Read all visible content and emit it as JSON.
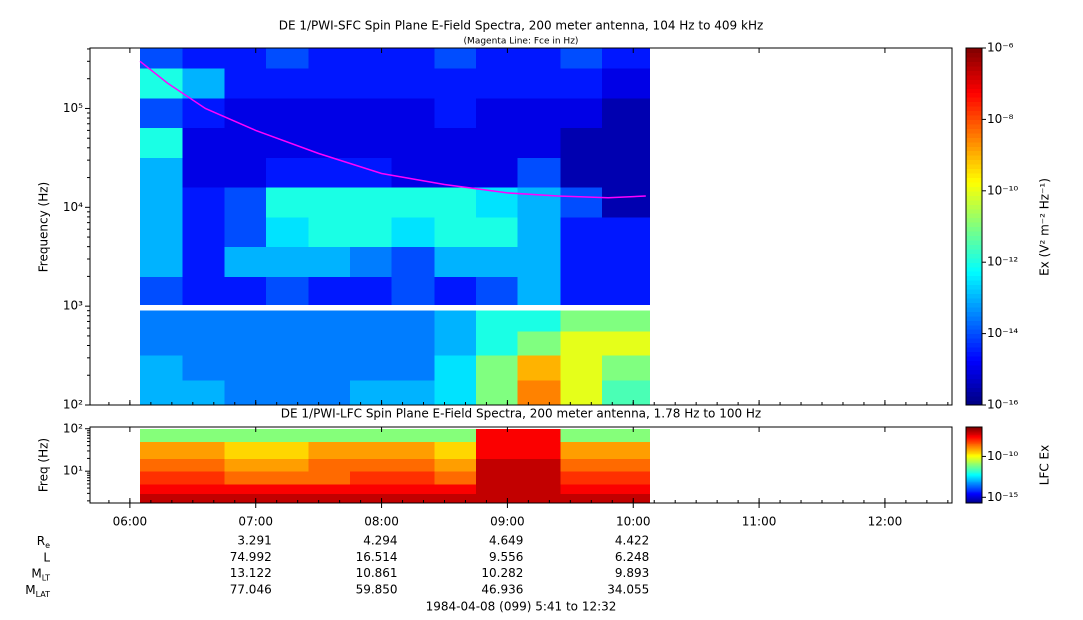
{
  "chart_data": [
    {
      "type": "heatmap",
      "title": "DE 1/PWI-SFC  Spin Plane E-Field Spectra, 200 meter antenna, 104 Hz to 409 kHz",
      "subtitle": "(Magenta Line: Fce in Hz)",
      "ylabel": "Frequency (Hz)",
      "colorbar_label": "Ex (V² m⁻² Hz⁻¹)",
      "colormap": "jet",
      "log_y": true,
      "xlim": [
        5.683,
        12.533
      ],
      "ylim": [
        100,
        409000
      ],
      "yticks": [
        {
          "value": 100,
          "label": "10²"
        },
        {
          "value": 1000,
          "label": "10³"
        },
        {
          "value": 10000,
          "label": "10⁴"
        },
        {
          "value": 100000,
          "label": "10⁵"
        }
      ],
      "clim": [
        1e-16,
        1e-06
      ],
      "cticks": [
        {
          "value": 1e-06,
          "label": "10⁻⁶"
        },
        {
          "value": 1e-08,
          "label": "10⁻⁸"
        },
        {
          "value": 1e-10,
          "label": "10⁻¹⁰"
        },
        {
          "value": 1e-12,
          "label": "10⁻¹²"
        },
        {
          "value": 1e-14,
          "label": "10⁻¹⁴"
        },
        {
          "value": 1e-16,
          "label": "10⁻¹⁶"
        }
      ],
      "x_edges": [
        6.08,
        6.42,
        6.75,
        7.08,
        7.42,
        7.75,
        8.08,
        8.42,
        8.75,
        9.08,
        9.42,
        9.75,
        10.13
      ],
      "y_edges": [
        100,
        180,
        320,
        560,
        900,
        1040,
        2000,
        4000,
        8000,
        16000,
        32000,
        64000,
        128000,
        256000,
        409000
      ],
      "z": [
        [
          1e-13,
          1e-13,
          3e-14,
          3e-14,
          3e-14,
          1e-13,
          1e-13,
          3e-13,
          1e-11,
          3e-09,
          1e-10,
          3e-12
        ],
        [
          1e-13,
          3e-14,
          3e-14,
          3e-14,
          3e-14,
          3e-14,
          3e-14,
          3e-13,
          1e-11,
          1e-09,
          1e-10,
          1e-11
        ],
        [
          3e-14,
          3e-14,
          3e-14,
          3e-14,
          3e-14,
          3e-14,
          3e-14,
          1e-13,
          1e-12,
          1e-11,
          1e-10,
          1e-10
        ],
        [
          3e-14,
          3e-14,
          3e-14,
          3e-14,
          3e-14,
          3e-14,
          3e-14,
          1e-13,
          1e-12,
          1e-12,
          1e-11,
          1e-11
        ],
        [
          null,
          null,
          null,
          null,
          null,
          null,
          null,
          null,
          null,
          null,
          null,
          null
        ],
        [
          1e-14,
          3e-15,
          3e-15,
          1e-14,
          3e-15,
          3e-15,
          1e-14,
          3e-15,
          1e-14,
          1e-13,
          3e-15,
          3e-15
        ],
        [
          1e-13,
          3e-15,
          1e-13,
          1e-13,
          1e-13,
          3e-14,
          1e-14,
          1e-13,
          1e-13,
          1e-13,
          3e-15,
          3e-15
        ],
        [
          1e-13,
          3e-15,
          1e-14,
          3e-13,
          1e-12,
          1e-12,
          3e-13,
          1e-12,
          1e-12,
          1e-13,
          3e-15,
          3e-15
        ],
        [
          1e-13,
          3e-15,
          1e-14,
          1e-12,
          1e-12,
          1e-12,
          1e-12,
          1e-12,
          3e-13,
          1e-13,
          1e-14,
          3e-16
        ],
        [
          1e-13,
          1e-15,
          1e-15,
          3e-15,
          3e-15,
          3e-15,
          1e-15,
          1e-15,
          1e-15,
          1e-14,
          3e-16,
          3e-16
        ],
        [
          1e-12,
          1e-15,
          1e-15,
          1e-15,
          1e-15,
          1e-15,
          1e-15,
          1e-15,
          1e-15,
          1e-15,
          3e-16,
          3e-16
        ],
        [
          1e-14,
          3e-15,
          1e-15,
          1e-15,
          1e-15,
          1e-15,
          1e-15,
          3e-15,
          1e-15,
          1e-15,
          1e-15,
          3e-16
        ],
        [
          1e-12,
          1e-13,
          3e-15,
          3e-15,
          3e-15,
          3e-15,
          3e-15,
          3e-15,
          3e-15,
          3e-15,
          3e-15,
          1e-15
        ],
        [
          1e-14,
          3e-15,
          3e-15,
          1e-14,
          3e-15,
          3e-15,
          3e-15,
          1e-14,
          3e-15,
          3e-15,
          1e-14,
          3e-15
        ]
      ],
      "line": {
        "name": "Fce",
        "color": "#ff00ff",
        "x": [
          6.08,
          6.3,
          6.6,
          7,
          7.5,
          8,
          8.5,
          9,
          9.4,
          9.8,
          10.1
        ],
        "values": [
          300000,
          180000,
          100000,
          60000,
          35000,
          22000,
          17000,
          14000,
          13000,
          12500,
          13000
        ]
      }
    },
    {
      "type": "heatmap",
      "title": "DE 1/PWI-LFC  Spin Plane E-Field Spectra, 200 meter antenna, 1.78 Hz to 100 Hz",
      "ylabel": "Freq (Hz)",
      "colorbar_label": "LFC Ex",
      "colormap": "jet",
      "log_y": true,
      "xlim": [
        5.683,
        12.533
      ],
      "xticks": [
        {
          "value": 6,
          "label": "06:00"
        },
        {
          "value": 7,
          "label": "07:00"
        },
        {
          "value": 8,
          "label": "08:00"
        },
        {
          "value": 9,
          "label": "09:00"
        },
        {
          "value": 10,
          "label": "10:00"
        },
        {
          "value": 11,
          "label": "11:00"
        },
        {
          "value": 12,
          "label": "12:00"
        }
      ],
      "ylim": [
        1.78,
        110
      ],
      "yticks": [
        {
          "value": 10,
          "label": "10¹"
        },
        {
          "value": 100,
          "label": "10²"
        }
      ],
      "clim": [
        2e-16,
        4e-07
      ],
      "cticks": [
        {
          "value": 1e-10,
          "label": "10⁻¹⁰"
        },
        {
          "value": 1e-15,
          "label": "10⁻¹⁵"
        }
      ],
      "x_edges": [
        6.08,
        6.42,
        6.75,
        7.08,
        7.42,
        7.75,
        8.08,
        8.42,
        8.75,
        9.08,
        9.42,
        9.75,
        10.13
      ],
      "y_edges": [
        1.78,
        3,
        5,
        10,
        20,
        50,
        100
      ],
      "z": [
        [
          1e-07,
          1e-07,
          1e-07,
          1e-07,
          1e-07,
          1e-07,
          1e-07,
          1e-07,
          1e-07,
          1e-07,
          1e-07,
          1e-07
        ],
        [
          3e-08,
          3e-08,
          3e-08,
          3e-08,
          3e-08,
          3e-08,
          3e-08,
          3e-08,
          1e-07,
          1e-07,
          3e-08,
          3e-08
        ],
        [
          1e-08,
          1e-08,
          3e-09,
          3e-09,
          3e-09,
          1e-08,
          1e-08,
          3e-09,
          1e-07,
          1e-07,
          1e-08,
          1e-08
        ],
        [
          3e-09,
          3e-09,
          1e-09,
          1e-09,
          3e-09,
          3e-09,
          3e-09,
          1e-09,
          1e-07,
          1e-07,
          3e-09,
          3e-09
        ],
        [
          1e-09,
          1e-09,
          3e-10,
          3e-10,
          1e-09,
          1e-09,
          1e-09,
          3e-10,
          3e-08,
          3e-08,
          1e-09,
          1e-09
        ],
        [
          1e-11,
          1e-11,
          1e-11,
          1e-11,
          1e-11,
          1e-11,
          1e-11,
          1e-11,
          3e-08,
          3e-08,
          1e-11,
          1e-11
        ]
      ]
    }
  ],
  "ephemeris": {
    "rows": [
      {
        "label": "R",
        "sub": "e",
        "values": [
          "3.291",
          "4.294",
          "4.649",
          "4.422"
        ]
      },
      {
        "label": "L",
        "sub": null,
        "values": [
          "74.992",
          "16.514",
          "9.556",
          "6.248"
        ]
      },
      {
        "label": "M",
        "sub": "LT",
        "values": [
          "13.122",
          "10.861",
          "10.282",
          "9.893"
        ]
      },
      {
        "label": "M",
        "sub": "LAT",
        "values": [
          "77.046",
          "59.850",
          "46.936",
          "34.055"
        ]
      }
    ],
    "footer": "1984-04-08 (099) 5:41 to 12:32"
  }
}
